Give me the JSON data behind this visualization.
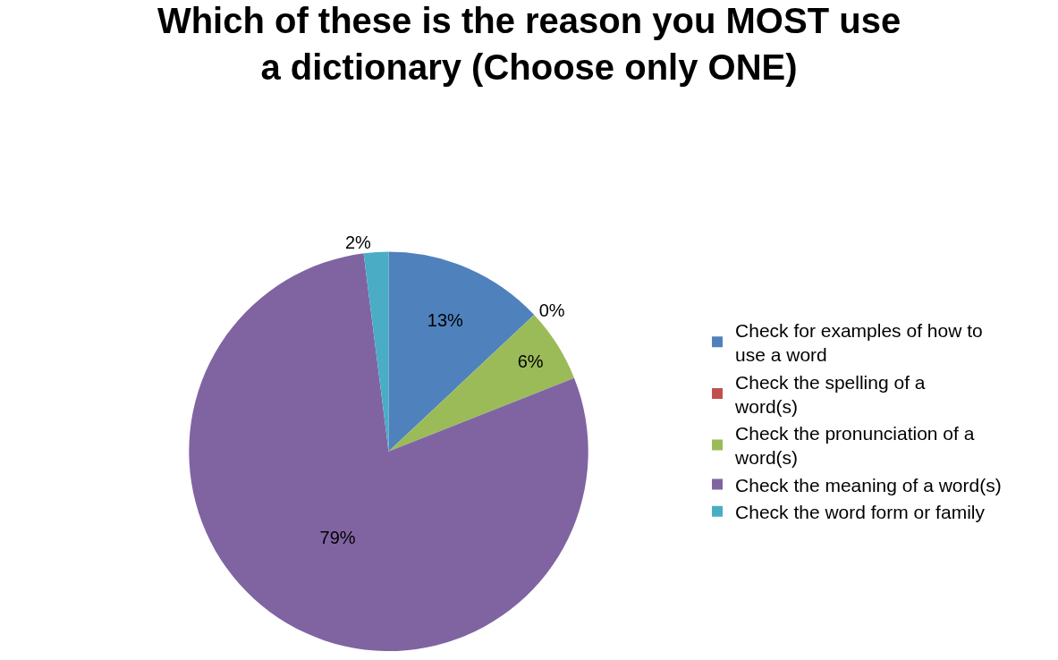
{
  "chart_data": {
    "type": "pie",
    "title": "Which of these is the reason you MOST use a dictionary (Choose only ONE)",
    "categories": [
      "Check for examples of how to use a word",
      "Check the spelling of a word(s)",
      "Check the pronunciation of a word(s)",
      "Check the meaning of a word(s)",
      "Check the word form or family"
    ],
    "values": [
      13,
      0,
      6,
      79,
      2
    ],
    "value_labels": [
      "13%",
      "0%",
      "6%",
      "79%",
      "2%"
    ],
    "colors": [
      "#4f81bd",
      "#c0504d",
      "#9bbb59",
      "#8064a2",
      "#4bacc6"
    ],
    "legend": "right"
  }
}
